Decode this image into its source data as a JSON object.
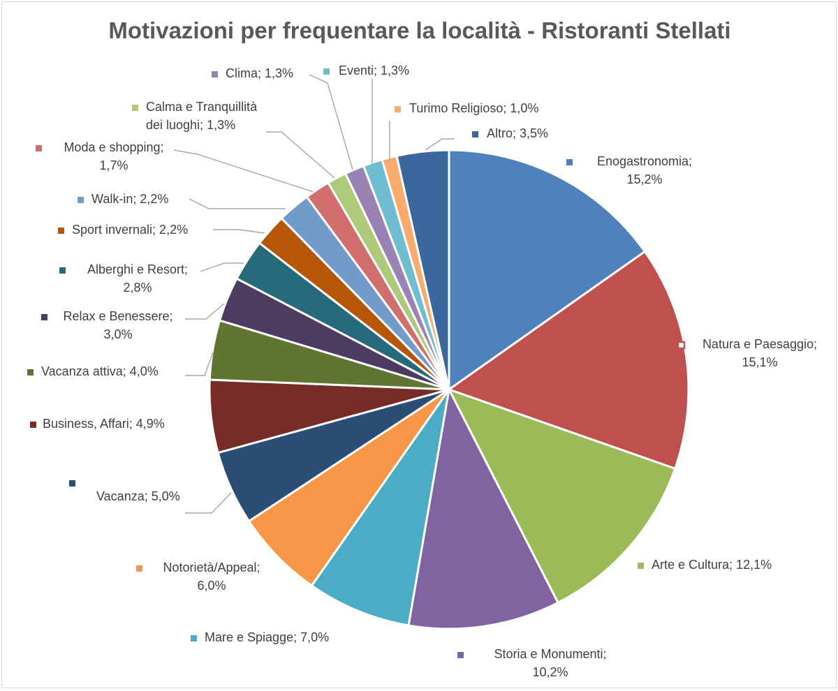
{
  "chart_data": {
    "type": "pie",
    "title": "Motivazioni per frequentare la località - Ristoranti Stellati",
    "slices": [
      {
        "name": "Enogastronomia",
        "value": 15.2,
        "label": "15,2%",
        "color": "#4f81bd"
      },
      {
        "name": "Natura e Paesaggio",
        "value": 15.1,
        "label": "15,1%",
        "color": "#c0504d"
      },
      {
        "name": "Arte e Cultura",
        "value": 12.1,
        "label": "12,1%",
        "color": "#9bbb59"
      },
      {
        "name": "Storia e Monumenti",
        "value": 10.2,
        "label": "10,2%",
        "color": "#8064a2"
      },
      {
        "name": "Mare e Spiagge",
        "value": 7.0,
        "label": "7,0%",
        "color": "#4bacc6"
      },
      {
        "name": "Notorietà/Appeal",
        "value": 6.0,
        "label": "6,0%",
        "color": "#f79646"
      },
      {
        "name": "Vacanza",
        "value": 5.0,
        "label": "5,0%",
        "color": "#2c4d75"
      },
      {
        "name": "Business, Affari",
        "value": 4.9,
        "label": "4,9%",
        "color": "#772c2a"
      },
      {
        "name": "Vacanza attiva",
        "value": 4.0,
        "label": "4,0%",
        "color": "#5f7530"
      },
      {
        "name": "Relax e Benessere",
        "value": 3.0,
        "label": "3,0%",
        "color": "#4d3b62"
      },
      {
        "name": "Alberghi e Resort",
        "value": 2.8,
        "label": "2,8%",
        "color": "#276a7c"
      },
      {
        "name": "Sport invernali",
        "value": 2.2,
        "label": "2,2%",
        "color": "#b65708"
      },
      {
        "name": "Walk-in",
        "value": 2.2,
        "label": "2,2%",
        "color": "#729aca"
      },
      {
        "name": "Moda e shopping",
        "value": 1.7,
        "label": "1,7%",
        "color": "#d16f6c"
      },
      {
        "name": "Calma e Tranquillità dei luoghi",
        "value": 1.3,
        "label": "1,3%",
        "color": "#afc97a"
      },
      {
        "name": "Clima",
        "value": 1.3,
        "label": "1,3%",
        "color": "#9983b5"
      },
      {
        "name": "Eventi",
        "value": 1.3,
        "label": "1,3%",
        "color": "#6fbdd1"
      },
      {
        "name": "Turimo Religioso",
        "value": 1.0,
        "label": "1,0%",
        "color": "#f9ab6b"
      },
      {
        "name": "Altro",
        "value": 3.5,
        "label": "3,5%",
        "color": "#3a679c"
      }
    ],
    "start_angle_deg": 0,
    "direction": "clockwise",
    "legend": "none",
    "data_labels": "category; percentage"
  }
}
